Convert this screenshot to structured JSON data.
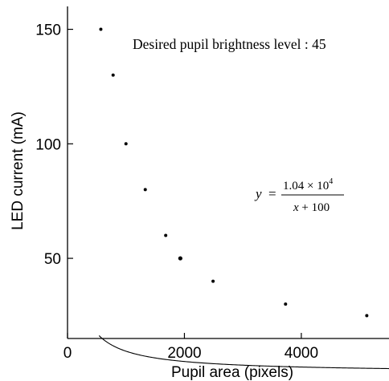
{
  "chart_data": {
    "type": "scatter",
    "title": "",
    "xlabel": "Pupil area (pixels)",
    "ylabel": "LED current (mA)",
    "xlim": [
      0,
      5500
    ],
    "ylim": [
      15,
      160
    ],
    "xticks": [
      0,
      2000,
      4000
    ],
    "yticks": [
      50,
      100,
      150
    ],
    "grid": false,
    "points": [
      {
        "x": 570,
        "y": 150
      },
      {
        "x": 780,
        "y": 130
      },
      {
        "x": 1000,
        "y": 100
      },
      {
        "x": 1330,
        "y": 80
      },
      {
        "x": 1680,
        "y": 60
      },
      {
        "x": 1930,
        "y": 50
      },
      {
        "x": 2490,
        "y": 40
      },
      {
        "x": 3730,
        "y": 30
      },
      {
        "x": 5120,
        "y": 25
      }
    ],
    "fit": {
      "numerator": 10400,
      "offset": 100,
      "x_start": 540,
      "x_end": 5500
    },
    "annotations": {
      "brightness_label": "Desired pupil brightness level : 45",
      "eq_y": "y",
      "eq_equals": "=",
      "eq_num_mantissa": "1.04 × 10",
      "eq_num_exp": "4",
      "eq_den_x": "x",
      "eq_den_rest": " + 100"
    }
  }
}
